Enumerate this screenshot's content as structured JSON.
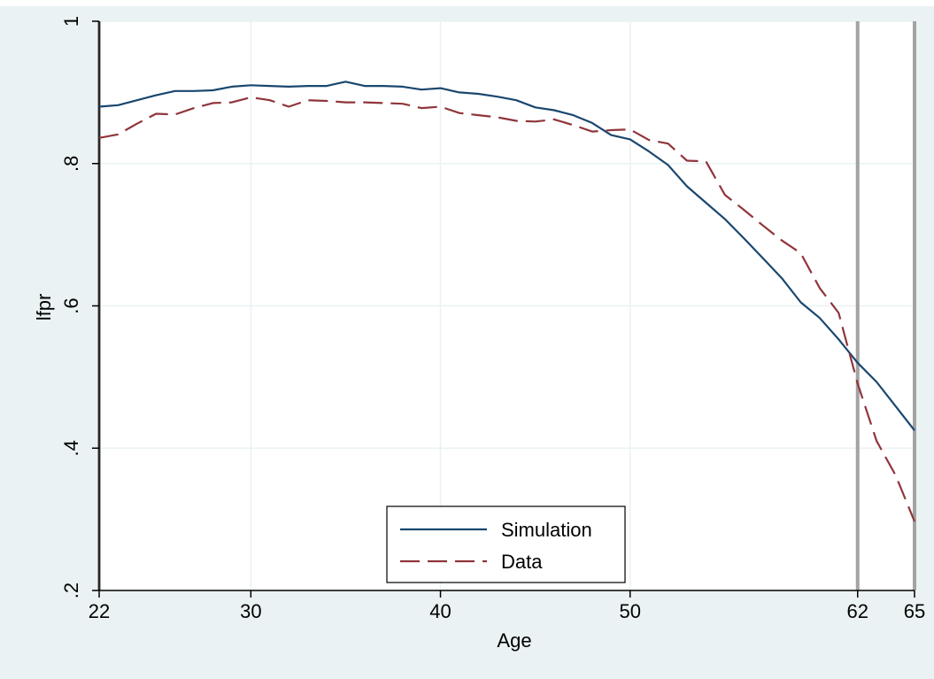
{
  "chart_data": {
    "type": "line",
    "xlabel": "Age",
    "ylabel": "lfpr",
    "xlim": [
      22,
      65
    ],
    "ylim": [
      0.2,
      1.0
    ],
    "x_ticks": [
      22,
      30,
      40,
      50,
      62,
      65
    ],
    "x_tick_labels": [
      "22",
      "30",
      "40",
      "50",
      "62",
      "65"
    ],
    "y_ticks": [
      0.2,
      0.4,
      0.6,
      0.8,
      1.0
    ],
    "y_tick_labels": [
      ".2",
      ".4",
      ".6",
      ".8",
      "1"
    ],
    "vertical_lines": [
      22,
      62,
      65
    ],
    "grid": true,
    "legend_position": "bottom-center",
    "colors": {
      "background": "#eaf2f3",
      "plot_area": "#ffffff",
      "gridline": "#eaf2f3",
      "reference_line": "#a3a3a3",
      "axis": "#000000"
    },
    "x": [
      22,
      23,
      24,
      25,
      26,
      27,
      28,
      29,
      30,
      31,
      32,
      33,
      34,
      35,
      36,
      37,
      38,
      39,
      40,
      41,
      42,
      43,
      44,
      45,
      46,
      47,
      48,
      49,
      50,
      51,
      52,
      53,
      54,
      55,
      56,
      57,
      58,
      59,
      60,
      61,
      62,
      63,
      64,
      65
    ],
    "series": [
      {
        "name": "Simulation",
        "color": "#1a476f",
        "dash": "solid",
        "values": [
          0.88,
          0.882,
          0.889,
          0.896,
          0.902,
          0.902,
          0.903,
          0.908,
          0.91,
          0.909,
          0.908,
          0.909,
          0.909,
          0.915,
          0.909,
          0.909,
          0.908,
          0.904,
          0.906,
          0.9,
          0.898,
          0.894,
          0.889,
          0.879,
          0.875,
          0.868,
          0.857,
          0.84,
          0.834,
          0.817,
          0.798,
          0.768,
          0.745,
          0.722,
          0.695,
          0.667,
          0.639,
          0.605,
          0.583,
          0.553,
          0.52,
          0.493,
          0.459,
          0.425
        ]
      },
      {
        "name": "Data",
        "color": "#90353b",
        "dash": "dashed",
        "values": [
          0.836,
          0.841,
          0.856,
          0.87,
          0.869,
          0.878,
          0.885,
          0.886,
          0.893,
          0.889,
          0.88,
          0.889,
          0.888,
          0.886,
          0.886,
          0.885,
          0.884,
          0.878,
          0.88,
          0.871,
          0.868,
          0.865,
          0.86,
          0.859,
          0.862,
          0.854,
          0.845,
          0.847,
          0.848,
          0.833,
          0.828,
          0.804,
          0.803,
          0.756,
          0.735,
          0.713,
          0.692,
          0.674,
          0.625,
          0.59,
          0.491,
          0.41,
          0.362,
          0.297
        ]
      }
    ]
  }
}
